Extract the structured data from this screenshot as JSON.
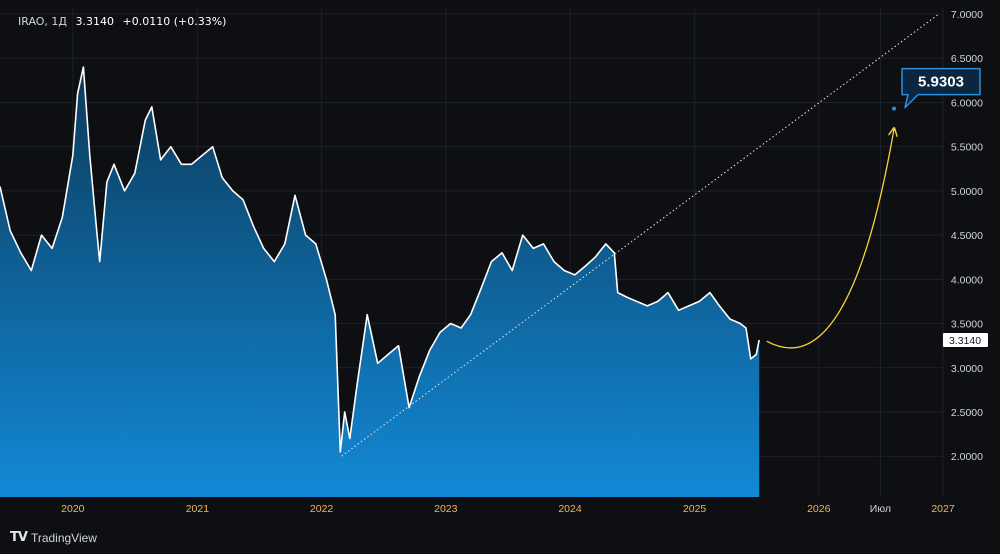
{
  "header": {
    "symbol": "IRAO, 1Д",
    "last": "3.3140",
    "change": "+0.0110 (+0.33%)"
  },
  "brand": {
    "name": "TradingView",
    "icon": "tradingview-logo-icon"
  },
  "colors": {
    "background": "#0e0f13",
    "grid": "#1e2028",
    "axis_text": "#d1d4dc",
    "year_text": "#f0b75a",
    "price_line": "#ffffff",
    "area_top": "#0c3a5a",
    "area_bottom": "#1289d6",
    "forecast_arrow": "#f5d33a",
    "callout_border": "#2a8fe0",
    "callout_fill": "#0d2640"
  },
  "chart_data": {
    "type": "area",
    "title": "",
    "xlabel": "",
    "ylabel": "",
    "ylim": [
      1.55,
      7.0
    ],
    "y_ticks": [
      "7.0000",
      "6.5000",
      "6.0000",
      "5.5000",
      "5.0000",
      "4.5000",
      "4.0000",
      "3.5000",
      "3.0000",
      "2.5000",
      "2.0000"
    ],
    "y_tick_values": [
      7.0,
      6.5,
      6.0,
      5.5,
      5.0,
      4.5,
      4.0,
      3.5,
      3.0,
      2.5,
      2.0
    ],
    "x_labels": [
      "2020",
      "2021",
      "2022",
      "2023",
      "2024",
      "2025",
      "2026",
      "Июл",
      "2027"
    ],
    "x_label_dates": [
      "2020-01",
      "2021-01",
      "2022-01",
      "2023-01",
      "2024-01",
      "2025-01",
      "2026-01",
      "2026-07",
      "2027-01"
    ],
    "xlim": [
      "2019-06",
      "2027-01"
    ],
    "grid": true,
    "series": [
      {
        "values_are": "approximate daily close, sampled",
        "points": [
          [
            "2019-06-01",
            5.05
          ],
          [
            "2019-07-01",
            4.55
          ],
          [
            "2019-08-01",
            4.3
          ],
          [
            "2019-09-01",
            4.1
          ],
          [
            "2019-10-01",
            4.5
          ],
          [
            "2019-11-01",
            4.35
          ],
          [
            "2019-12-01",
            4.7
          ],
          [
            "2020-01-01",
            5.4
          ],
          [
            "2020-01-15",
            6.1
          ],
          [
            "2020-02-01",
            6.4
          ],
          [
            "2020-02-20",
            5.4
          ],
          [
            "2020-03-10",
            4.6
          ],
          [
            "2020-03-20",
            4.2
          ],
          [
            "2020-04-10",
            5.1
          ],
          [
            "2020-05-01",
            5.3
          ],
          [
            "2020-06-01",
            5.0
          ],
          [
            "2020-07-01",
            5.2
          ],
          [
            "2020-08-01",
            5.8
          ],
          [
            "2020-08-20",
            5.95
          ],
          [
            "2020-09-15",
            5.35
          ],
          [
            "2020-10-15",
            5.5
          ],
          [
            "2020-11-15",
            5.3
          ],
          [
            "2020-12-15",
            5.3
          ],
          [
            "2021-01-15",
            5.4
          ],
          [
            "2021-02-15",
            5.5
          ],
          [
            "2021-03-15",
            5.15
          ],
          [
            "2021-04-15",
            5.0
          ],
          [
            "2021-05-15",
            4.9
          ],
          [
            "2021-06-15",
            4.6
          ],
          [
            "2021-07-15",
            4.35
          ],
          [
            "2021-08-15",
            4.2
          ],
          [
            "2021-09-15",
            4.4
          ],
          [
            "2021-10-15",
            4.95
          ],
          [
            "2021-11-15",
            4.5
          ],
          [
            "2021-12-15",
            4.4
          ],
          [
            "2022-01-15",
            4.0
          ],
          [
            "2022-02-10",
            3.6
          ],
          [
            "2022-02-25",
            2.05
          ],
          [
            "2022-03-10",
            2.5
          ],
          [
            "2022-03-25",
            2.2
          ],
          [
            "2022-04-15",
            2.8
          ],
          [
            "2022-05-15",
            3.6
          ],
          [
            "2022-06-15",
            3.05
          ],
          [
            "2022-07-15",
            3.15
          ],
          [
            "2022-08-15",
            3.25
          ],
          [
            "2022-09-15",
            2.55
          ],
          [
            "2022-10-15",
            2.9
          ],
          [
            "2022-11-15",
            3.2
          ],
          [
            "2022-12-15",
            3.4
          ],
          [
            "2023-01-15",
            3.5
          ],
          [
            "2023-02-15",
            3.45
          ],
          [
            "2023-03-15",
            3.6
          ],
          [
            "2023-04-15",
            3.9
          ],
          [
            "2023-05-15",
            4.2
          ],
          [
            "2023-06-15",
            4.3
          ],
          [
            "2023-07-15",
            4.1
          ],
          [
            "2023-08-15",
            4.5
          ],
          [
            "2023-09-15",
            4.35
          ],
          [
            "2023-10-15",
            4.4
          ],
          [
            "2023-11-15",
            4.2
          ],
          [
            "2023-12-15",
            4.1
          ],
          [
            "2024-01-15",
            4.05
          ],
          [
            "2024-02-15",
            4.15
          ],
          [
            "2024-03-15",
            4.25
          ],
          [
            "2024-04-15",
            4.4
          ],
          [
            "2024-05-10",
            4.3
          ],
          [
            "2024-05-20",
            3.85
          ],
          [
            "2024-06-15",
            3.8
          ],
          [
            "2024-07-15",
            3.75
          ],
          [
            "2024-08-15",
            3.7
          ],
          [
            "2024-09-15",
            3.75
          ],
          [
            "2024-10-15",
            3.85
          ],
          [
            "2024-11-15",
            3.65
          ],
          [
            "2024-12-15",
            3.7
          ],
          [
            "2025-01-15",
            3.75
          ],
          [
            "2025-02-15",
            3.85
          ],
          [
            "2025-03-15",
            3.7
          ],
          [
            "2025-04-15",
            3.55
          ],
          [
            "2025-05-15",
            3.5
          ],
          [
            "2025-06-01",
            3.45
          ],
          [
            "2025-06-15",
            3.1
          ],
          [
            "2025-07-01",
            3.15
          ],
          [
            "2025-07-10",
            3.314
          ]
        ]
      }
    ],
    "last_value_label": "3.3140",
    "last_value": 3.314,
    "trendline": {
      "from": [
        "2022-03-01",
        2.0
      ],
      "to": [
        "2026-12-20",
        7.0
      ]
    },
    "forecast_arrow": {
      "from": [
        "2025-08-01",
        3.3
      ],
      "to": [
        "2026-08-10",
        5.7
      ]
    },
    "target_callout": {
      "label": "5.9303",
      "date": "2026-08-10",
      "value": 5.9303
    }
  }
}
